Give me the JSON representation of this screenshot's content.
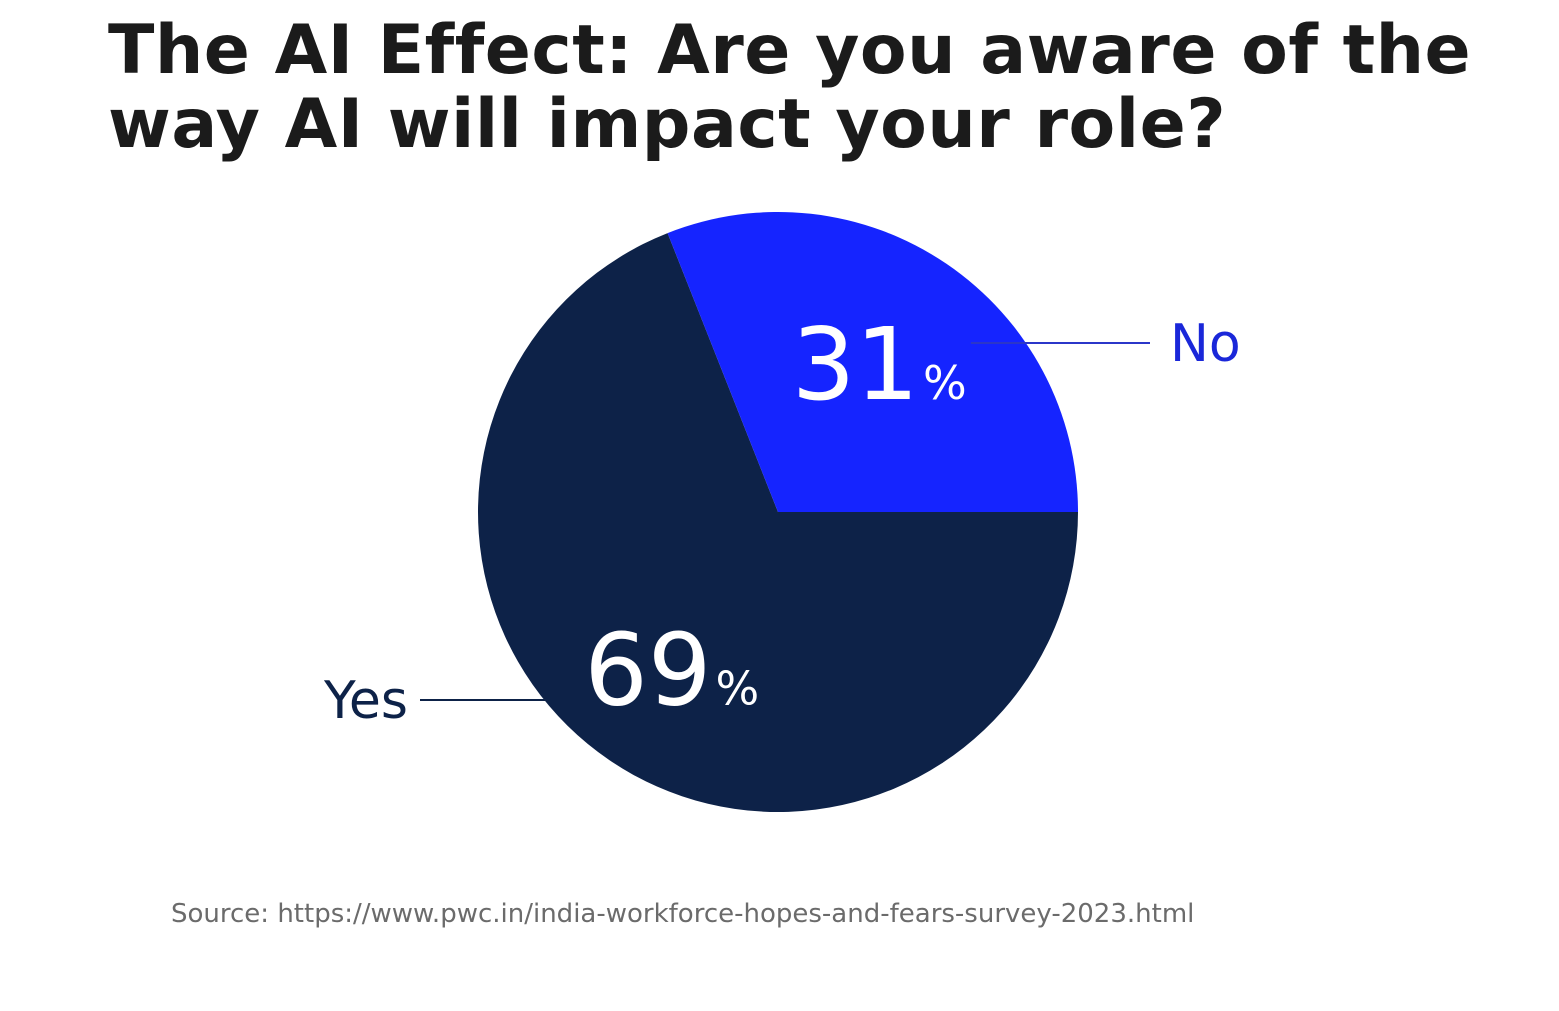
{
  "chart_data": {
    "type": "pie",
    "title": "The AI Effect: Are you aware of the way AI will impact your role?",
    "slices": [
      {
        "label": "Yes",
        "value": 69,
        "display": "69",
        "unit": "%",
        "color": "#0d2248",
        "label_color": "#0d2248",
        "leader_color": "#0d2248"
      },
      {
        "label": "No",
        "value": 31,
        "display": "31",
        "unit": "%",
        "color": "#1524ff",
        "label_color": "#1a27d9",
        "leader_color": "#2b36c9"
      }
    ],
    "legend": "none"
  },
  "source": "Source: https://www.pwc.in/india-workforce-hopes-and-fears-survey-2023.html"
}
